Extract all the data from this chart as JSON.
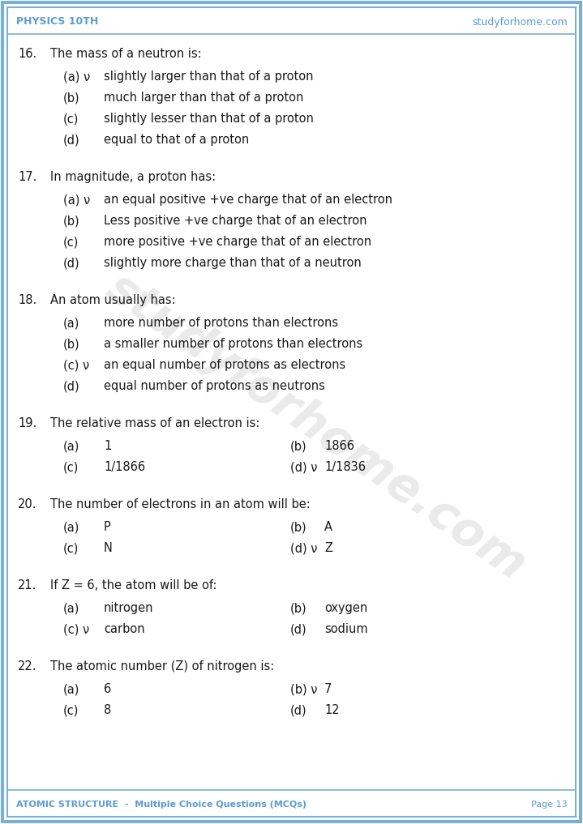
{
  "header_left": "PHYSICS 10TH",
  "header_right": "studyforhome.com",
  "footer_left": "ATOMIC STRUCTURE  -  Multiple Choice Questions (MCQs)",
  "footer_right": "Page 13",
  "bg_color": "#ffffff",
  "border_color": "#7bafd4",
  "header_color": "#5b9bd5",
  "text_color": "#1a1a1a",
  "questions": [
    {
      "num": "16.",
      "question": "The mass of a neutron is:",
      "options": [
        {
          "label": "(a) ν",
          "text": "slightly larger than that of a proton"
        },
        {
          "label": "(b)",
          "text": "much larger than that of a proton"
        },
        {
          "label": "(c)",
          "text": "slightly lesser than that of a proton"
        },
        {
          "label": "(d)",
          "text": "equal to that of a proton"
        }
      ],
      "layout": "vertical"
    },
    {
      "num": "17.",
      "question": "In magnitude, a proton has:",
      "options": [
        {
          "label": "(a) ν",
          "text": "an equal positive +ve charge that of an electron"
        },
        {
          "label": "(b)",
          "text": "Less positive +ve charge that of an electron"
        },
        {
          "label": "(c)",
          "text": "more positive +ve charge that of an electron"
        },
        {
          "label": "(d)",
          "text": "slightly more charge than that of a neutron"
        }
      ],
      "layout": "vertical"
    },
    {
      "num": "18.",
      "question": "An atom usually has:",
      "options": [
        {
          "label": "(a)",
          "text": "more number of protons than electrons"
        },
        {
          "label": "(b)",
          "text": "a smaller number of protons than electrons"
        },
        {
          "label": "(c) ν",
          "text": "an equal number of protons as electrons"
        },
        {
          "label": "(d)",
          "text": "equal number of protons as neutrons"
        }
      ],
      "layout": "vertical"
    },
    {
      "num": "19.",
      "question": "The relative mass of an electron is:",
      "options": [
        {
          "label": "(a)",
          "text": "1",
          "col": 0
        },
        {
          "label": "(b)",
          "text": "1866",
          "col": 1
        },
        {
          "label": "(c)",
          "text": "1/1866",
          "col": 0
        },
        {
          "label": "(d) ν",
          "text": "1/1836",
          "col": 1
        }
      ],
      "layout": "two_col"
    },
    {
      "num": "20.",
      "question": "The number of electrons in an atom will be:",
      "options": [
        {
          "label": "(a)",
          "text": "P",
          "col": 0
        },
        {
          "label": "(b)",
          "text": "A",
          "col": 1
        },
        {
          "label": "(c)",
          "text": "N",
          "col": 0
        },
        {
          "label": "(d) ν",
          "text": "Z",
          "col": 1
        }
      ],
      "layout": "two_col"
    },
    {
      "num": "21.",
      "question": "If Z = 6, the atom will be of:",
      "options": [
        {
          "label": "(a)",
          "text": "nitrogen",
          "col": 0
        },
        {
          "label": "(b)",
          "text": "oxygen",
          "col": 1
        },
        {
          "label": "(c) ν",
          "text": "carbon",
          "col": 0
        },
        {
          "label": "(d)",
          "text": "sodium",
          "col": 1
        }
      ],
      "layout": "two_col"
    },
    {
      "num": "22.",
      "question": "The atomic number (Z) of nitrogen is:",
      "options": [
        {
          "label": "(a)",
          "text": "6",
          "col": 0
        },
        {
          "label": "(b) ν",
          "text": "7",
          "col": 1
        },
        {
          "label": "(c)",
          "text": "8",
          "col": 0
        },
        {
          "label": "(d)",
          "text": "12",
          "col": 1
        }
      ],
      "layout": "two_col"
    }
  ]
}
